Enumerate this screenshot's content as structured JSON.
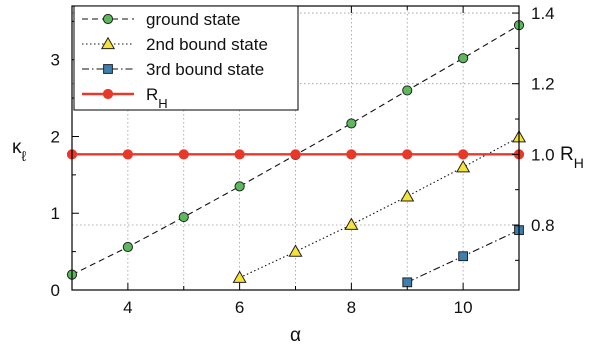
{
  "chart_data": {
    "type": "line",
    "xlabel": "α",
    "ylabel_left": "κ",
    "ylabel_left_sub": "ℓ",
    "ylabel_right": "R",
    "ylabel_right_sub": "H",
    "xlim": [
      3,
      11
    ],
    "ylim_left": [
      0,
      3.7
    ],
    "ylim_right": [
      0.616,
      1.42
    ],
    "xticks": [
      4,
      6,
      8,
      10
    ],
    "yticks_left": [
      0,
      1,
      2,
      3
    ],
    "yticks_right": [
      0.8,
      1.0,
      1.2,
      1.4
    ],
    "yticks_right_labels": [
      "0.8",
      "1.0",
      "1.2",
      "1.4"
    ],
    "grid": true,
    "legend_position": "top-left",
    "series": [
      {
        "name": "ground state",
        "axis": "left",
        "marker": "circle",
        "marker_color": "#5cb85c",
        "line_style": "dashed",
        "x": [
          3,
          4,
          5,
          6,
          7,
          8,
          9,
          10,
          11
        ],
        "y": [
          0.2,
          0.56,
          0.95,
          1.35,
          1.76,
          2.17,
          2.6,
          3.02,
          3.45
        ]
      },
      {
        "name": "2nd bound state",
        "axis": "left",
        "marker": "triangle",
        "marker_color": "#f5e33a",
        "line_style": "dotted",
        "x": [
          6,
          7,
          8,
          9,
          10,
          11
        ],
        "y": [
          0.16,
          0.5,
          0.85,
          1.22,
          1.6,
          1.99
        ]
      },
      {
        "name": "3rd bound state",
        "axis": "left",
        "marker": "square",
        "marker_color": "#3d7fb0",
        "line_style": "dashdot",
        "x": [
          9,
          10,
          11
        ],
        "y": [
          0.1,
          0.44,
          0.78
        ]
      },
      {
        "name": "R",
        "name_sub": "H",
        "axis": "right",
        "marker": "circle",
        "marker_color": "#e8382a",
        "line_style": "solid",
        "line_color": "#e8382a",
        "x": [
          3,
          4,
          5,
          6,
          7,
          8,
          9,
          10,
          11
        ],
        "y": [
          1.0,
          1.0,
          1.0,
          1.0,
          1.0,
          1.0,
          1.0,
          1.0,
          1.0
        ]
      }
    ]
  }
}
